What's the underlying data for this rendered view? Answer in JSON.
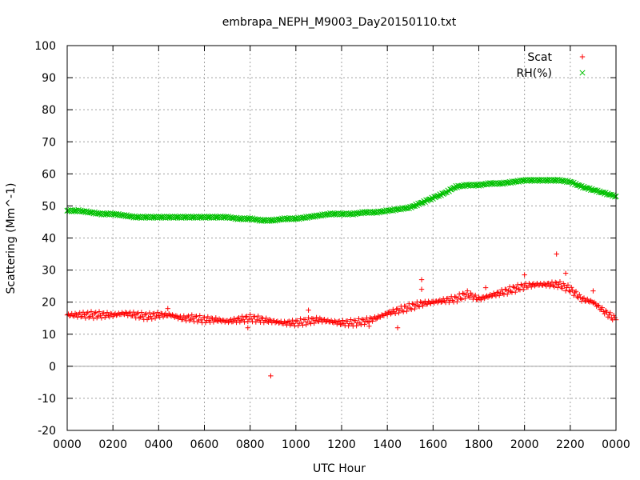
{
  "chart_data": {
    "type": "scatter",
    "title": "embrapa_NEPH_M9003_Day20150110.txt",
    "xlabel": "UTC Hour",
    "ylabel": "Scattering (Mm^-1)",
    "xlim": [
      0,
      24
    ],
    "ylim": [
      -20,
      100
    ],
    "grid": true,
    "legend_position": "top-right",
    "x_ticks": [
      {
        "value": 0,
        "label": "0000"
      },
      {
        "value": 2,
        "label": "0200"
      },
      {
        "value": 4,
        "label": "0400"
      },
      {
        "value": 6,
        "label": "0600"
      },
      {
        "value": 8,
        "label": "0800"
      },
      {
        "value": 10,
        "label": "1000"
      },
      {
        "value": 12,
        "label": "1200"
      },
      {
        "value": 14,
        "label": "1400"
      },
      {
        "value": 16,
        "label": "1600"
      },
      {
        "value": 18,
        "label": "1800"
      },
      {
        "value": 20,
        "label": "2000"
      },
      {
        "value": 22,
        "label": "2200"
      },
      {
        "value": 24,
        "label": "0000"
      }
    ],
    "y_ticks": [
      {
        "value": -20,
        "label": "-20"
      },
      {
        "value": -10,
        "label": "-10"
      },
      {
        "value": 0,
        "label": "0"
      },
      {
        "value": 10,
        "label": "10"
      },
      {
        "value": 20,
        "label": "20"
      },
      {
        "value": 30,
        "label": "30"
      },
      {
        "value": 40,
        "label": "40"
      },
      {
        "value": 50,
        "label": "50"
      },
      {
        "value": 60,
        "label": "60"
      },
      {
        "value": 70,
        "label": "70"
      },
      {
        "value": 80,
        "label": "80"
      },
      {
        "value": 90,
        "label": "90"
      },
      {
        "value": 100,
        "label": "100"
      }
    ],
    "zero_line": true,
    "series": [
      {
        "name": "Scat",
        "marker": "+",
        "color": "#ff0000",
        "x": [
          0,
          0.5,
          1,
          1.5,
          2,
          2.5,
          3,
          3.5,
          4,
          4.5,
          5,
          5.5,
          6,
          6.5,
          7,
          7.5,
          8,
          8.5,
          9,
          9.5,
          10,
          10.5,
          11,
          11.5,
          12,
          12.5,
          13,
          13.5,
          14,
          14.5,
          15,
          15.5,
          16,
          16.5,
          17,
          17.5,
          18,
          18.5,
          19,
          19.5,
          20,
          20.5,
          21,
          21.5,
          22,
          22.5,
          23,
          23.5,
          24
        ],
        "y": [
          16,
          16,
          16,
          16,
          16,
          16.5,
          16,
          15.5,
          16,
          16,
          15,
          15,
          14.5,
          14.5,
          14,
          14.5,
          15,
          14.5,
          14,
          13.5,
          13.5,
          14,
          14.5,
          14,
          13.5,
          13.5,
          14,
          15,
          16.5,
          17.5,
          18.5,
          19.5,
          20,
          20.5,
          21,
          22.5,
          21,
          22,
          23,
          24,
          25,
          25.5,
          25.5,
          25.5,
          24,
          21,
          20,
          17,
          14.5
        ],
        "outliers": [
          {
            "x": 8.9,
            "y": -3
          },
          {
            "x": 7.9,
            "y": 12
          },
          {
            "x": 14.45,
            "y": 12
          },
          {
            "x": 13.2,
            "y": 12.5
          },
          {
            "x": 15.5,
            "y": 27
          },
          {
            "x": 15.5,
            "y": 24
          },
          {
            "x": 21.4,
            "y": 35
          },
          {
            "x": 20,
            "y": 28.5
          },
          {
            "x": 18.3,
            "y": 24.5
          },
          {
            "x": 23,
            "y": 23.5
          },
          {
            "x": 21.8,
            "y": 29
          },
          {
            "x": 10.55,
            "y": 17.5
          },
          {
            "x": 4.4,
            "y": 18
          }
        ]
      },
      {
        "name": "RH(%)",
        "marker": "x",
        "color": "#00c000",
        "x": [
          0,
          0.5,
          1,
          1.5,
          2,
          2.5,
          3,
          3.5,
          4,
          4.5,
          5,
          5.5,
          6,
          6.5,
          7,
          7.5,
          8,
          8.5,
          9,
          9.5,
          10,
          10.5,
          11,
          11.5,
          12,
          12.5,
          13,
          13.5,
          14,
          14.5,
          15,
          15.5,
          16,
          16.5,
          17,
          17.5,
          18,
          18.5,
          19,
          19.5,
          20,
          20.5,
          21,
          21.5,
          22,
          22.5,
          23,
          23.5,
          24
        ],
        "y": [
          48.5,
          48.5,
          48,
          47.5,
          47.5,
          47,
          46.5,
          46.5,
          46.5,
          46.5,
          46.5,
          46.5,
          46.5,
          46.5,
          46.5,
          46,
          46,
          45.5,
          45.5,
          46,
          46,
          46.5,
          47,
          47.5,
          47.5,
          47.5,
          48,
          48,
          48.5,
          49,
          49.5,
          51,
          52.5,
          54,
          56,
          56.5,
          56.5,
          57,
          57,
          57.5,
          58,
          58,
          58,
          58,
          57.5,
          56,
          55,
          54,
          53
        ]
      }
    ]
  }
}
